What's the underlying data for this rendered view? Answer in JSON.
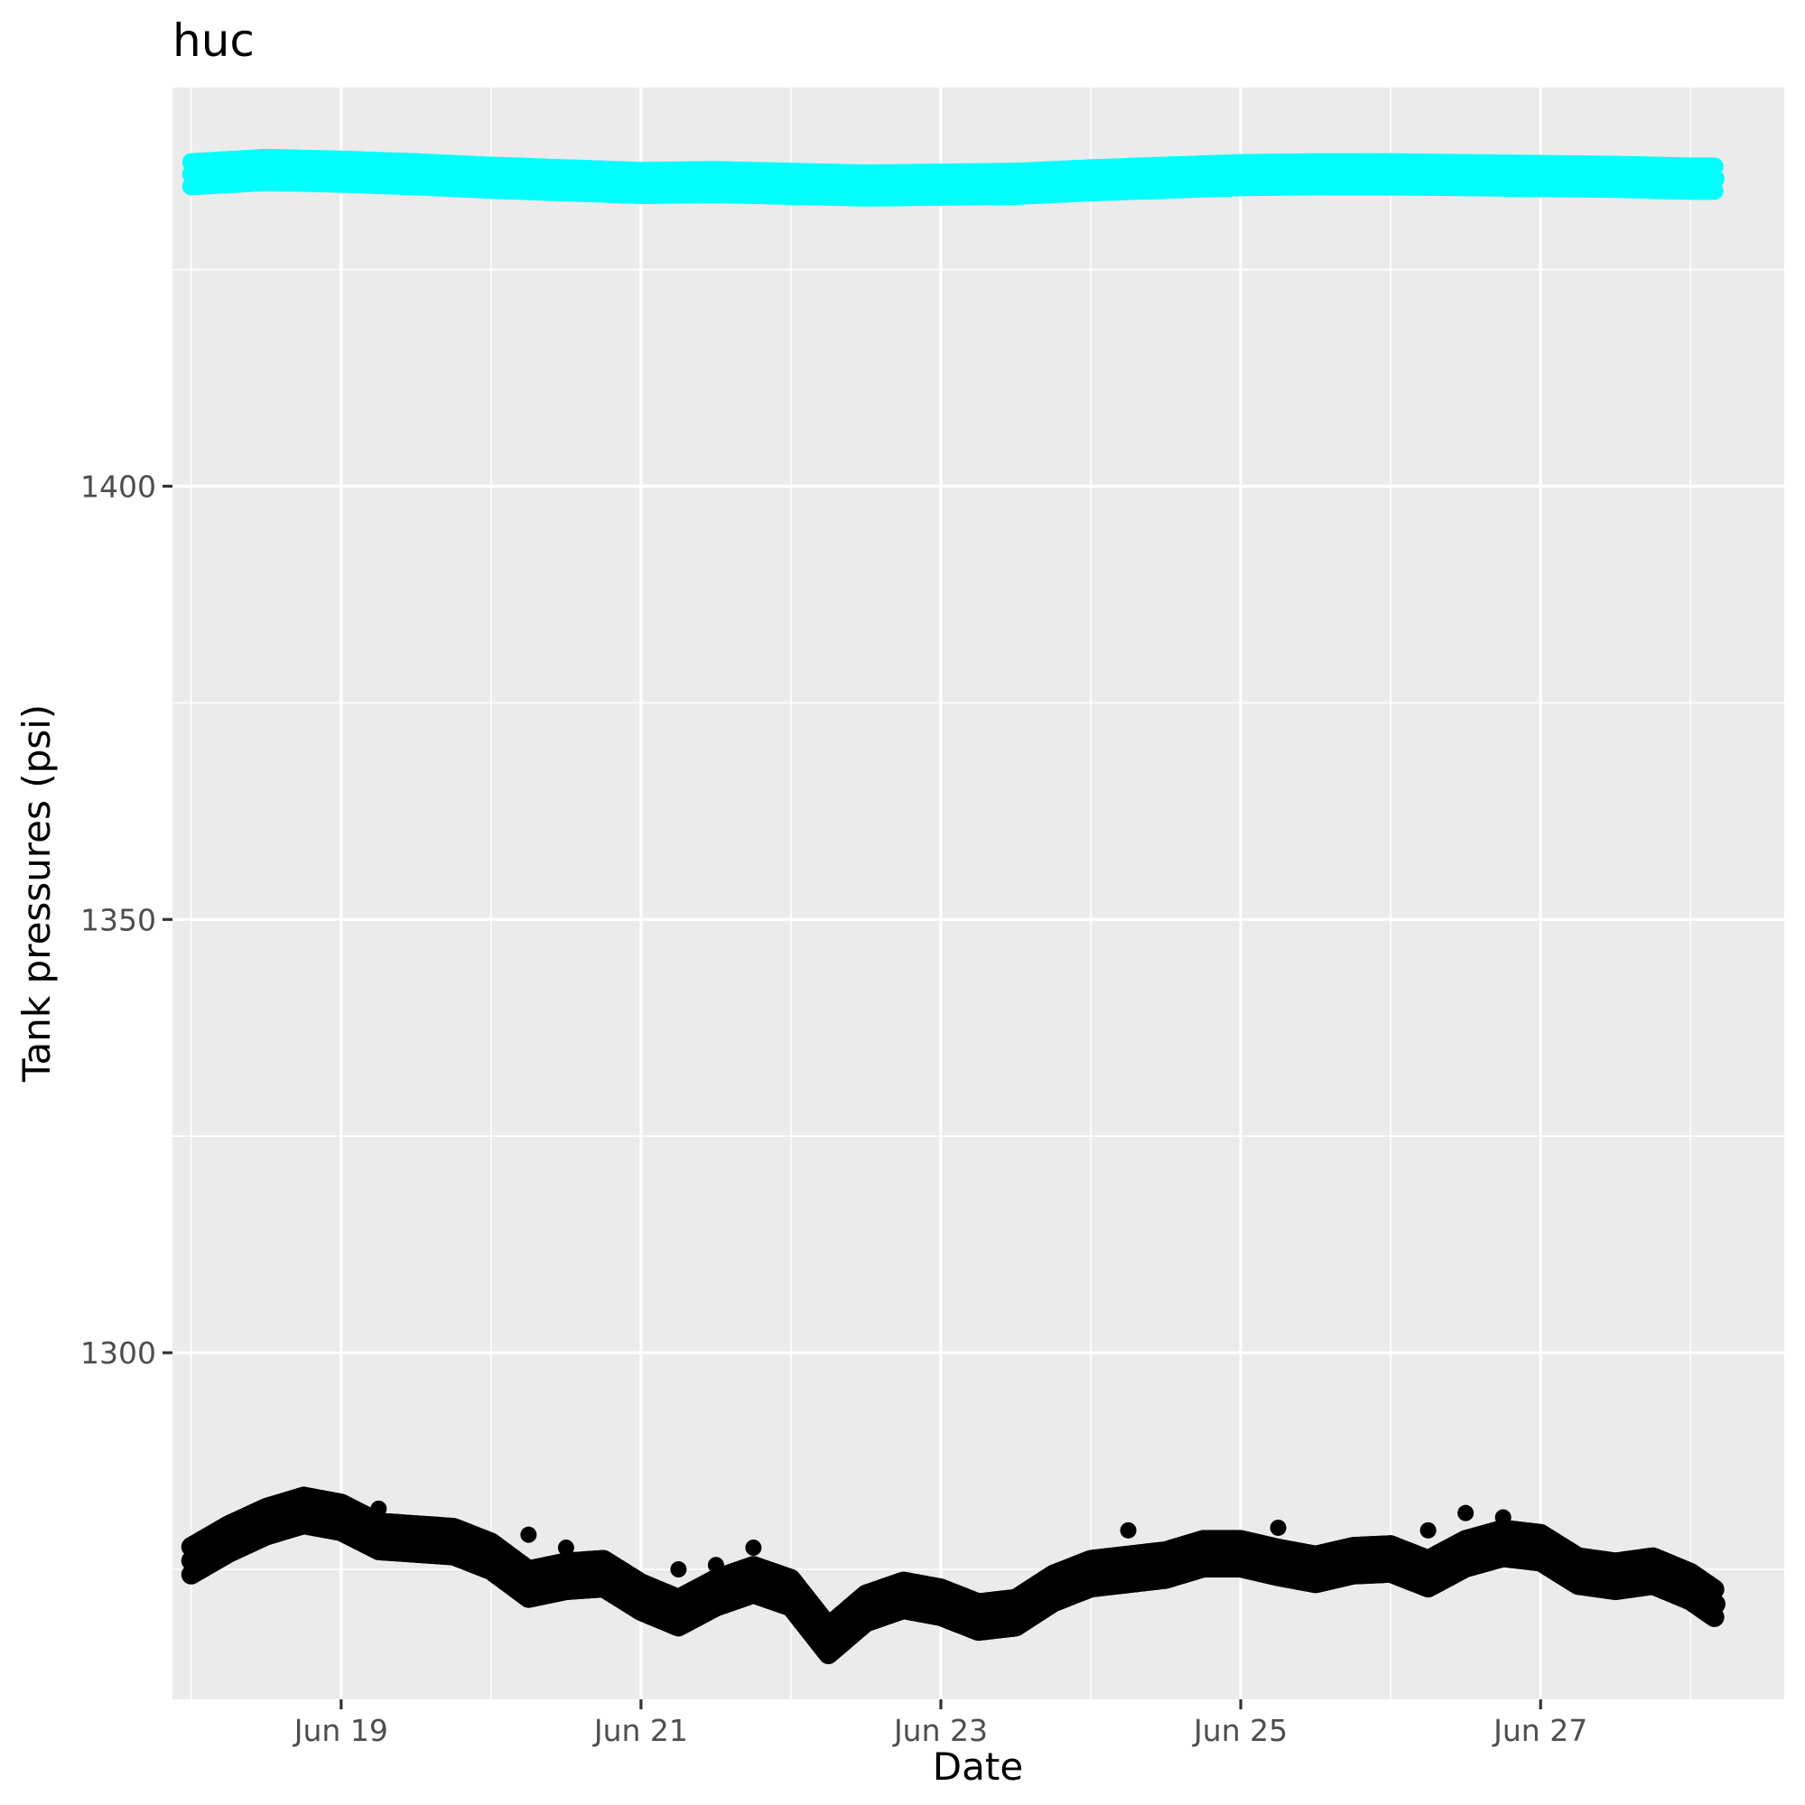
{
  "chart_data": {
    "type": "scatter",
    "title": "huc",
    "xlabel": "Date",
    "ylabel": "Tank pressures (psi)",
    "x_range": [
      "2021-06-17T21:00",
      "2021-06-28T15:00"
    ],
    "y_range": [
      1260,
      1446
    ],
    "x_ticks": [
      {
        "date": "2021-06-19",
        "label": "Jun 19"
      },
      {
        "date": "2021-06-21",
        "label": "Jun 21"
      },
      {
        "date": "2021-06-23",
        "label": "Jun 23"
      },
      {
        "date": "2021-06-25",
        "label": "Jun 25"
      },
      {
        "date": "2021-06-27",
        "label": "Jun 27"
      }
    ],
    "x_minor_dates": [
      "2021-06-18",
      "2021-06-20",
      "2021-06-22",
      "2021-06-24",
      "2021-06-26",
      "2021-06-28"
    ],
    "y_ticks": [
      1300,
      1350,
      1400
    ],
    "y_minor": [
      1275,
      1325,
      1375,
      1425
    ],
    "grid": true,
    "legend": "none",
    "series": [
      {
        "color": "#00ffff",
        "x": [
          "2021-06-18T00:00",
          "2021-06-18T12:00",
          "2021-06-19T00:00",
          "2021-06-19T12:00",
          "2021-06-20T00:00",
          "2021-06-20T12:00",
          "2021-06-21T00:00",
          "2021-06-21T12:00",
          "2021-06-22T00:00",
          "2021-06-22T12:00",
          "2021-06-23T00:00",
          "2021-06-23T12:00",
          "2021-06-24T00:00",
          "2021-06-24T12:00",
          "2021-06-25T00:00",
          "2021-06-25T12:00",
          "2021-06-26T00:00",
          "2021-06-26T12:00",
          "2021-06-27T00:00",
          "2021-06-27T12:00",
          "2021-06-28T00:00",
          "2021-06-28T04:00"
        ],
        "y": [
          1436,
          1436.5,
          1436.3,
          1436,
          1435.6,
          1435.3,
          1435,
          1435.1,
          1434.9,
          1434.7,
          1434.8,
          1434.9,
          1435.3,
          1435.6,
          1435.9,
          1436,
          1436,
          1435.9,
          1435.8,
          1435.7,
          1435.5,
          1435.5
        ]
      },
      {
        "color": "#000000",
        "x": [
          "2021-06-18T00:00",
          "2021-06-18T06:00",
          "2021-06-18T12:00",
          "2021-06-18T18:00",
          "2021-06-19T00:00",
          "2021-06-19T06:00",
          "2021-06-19T12:00",
          "2021-06-19T18:00",
          "2021-06-20T00:00",
          "2021-06-20T06:00",
          "2021-06-20T12:00",
          "2021-06-20T18:00",
          "2021-06-21T00:00",
          "2021-06-21T06:00",
          "2021-06-21T12:00",
          "2021-06-21T18:00",
          "2021-06-22T00:00",
          "2021-06-22T06:00",
          "2021-06-22T12:00",
          "2021-06-22T18:00",
          "2021-06-23T00:00",
          "2021-06-23T06:00",
          "2021-06-23T12:00",
          "2021-06-23T18:00",
          "2021-06-24T00:00",
          "2021-06-24T06:00",
          "2021-06-24T12:00",
          "2021-06-24T18:00",
          "2021-06-25T00:00",
          "2021-06-25T06:00",
          "2021-06-25T12:00",
          "2021-06-25T18:00",
          "2021-06-26T00:00",
          "2021-06-26T06:00",
          "2021-06-26T12:00",
          "2021-06-26T18:00",
          "2021-06-27T00:00",
          "2021-06-27T06:00",
          "2021-06-27T12:00",
          "2021-06-27T18:00",
          "2021-06-28T00:00",
          "2021-06-28T04:00"
        ],
        "y": [
          1276,
          1278.5,
          1280.5,
          1281.8,
          1281,
          1278.8,
          1278.5,
          1278.2,
          1276.5,
          1273.3,
          1274.2,
          1274.5,
          1271.8,
          1270,
          1272.3,
          1273.8,
          1272.3,
          1266.8,
          1270.5,
          1272,
          1271.2,
          1269.5,
          1270,
          1272.8,
          1274.5,
          1275,
          1275.5,
          1276.8,
          1276.8,
          1275.8,
          1275,
          1276,
          1276.2,
          1274.5,
          1276.8,
          1278,
          1277.5,
          1274.8,
          1274.2,
          1274.8,
          1273,
          1271
        ]
      }
    ],
    "outliers": [
      {
        "color": "#000000",
        "x": [
          "2021-06-19T06:00",
          "2021-06-20T06:00",
          "2021-06-20T12:00",
          "2021-06-21T06:00",
          "2021-06-21T12:00",
          "2021-06-21T18:00",
          "2021-06-22T18:00",
          "2021-06-24T06:00",
          "2021-06-25T06:00",
          "2021-06-26T06:00",
          "2021-06-26T12:00",
          "2021-06-26T18:00"
        ],
        "y": [
          1282,
          1279,
          1277.5,
          1275,
          1275.5,
          1277.5,
          1273,
          1279.5,
          1279.8,
          1279.5,
          1281.5,
          1281
        ]
      }
    ]
  }
}
